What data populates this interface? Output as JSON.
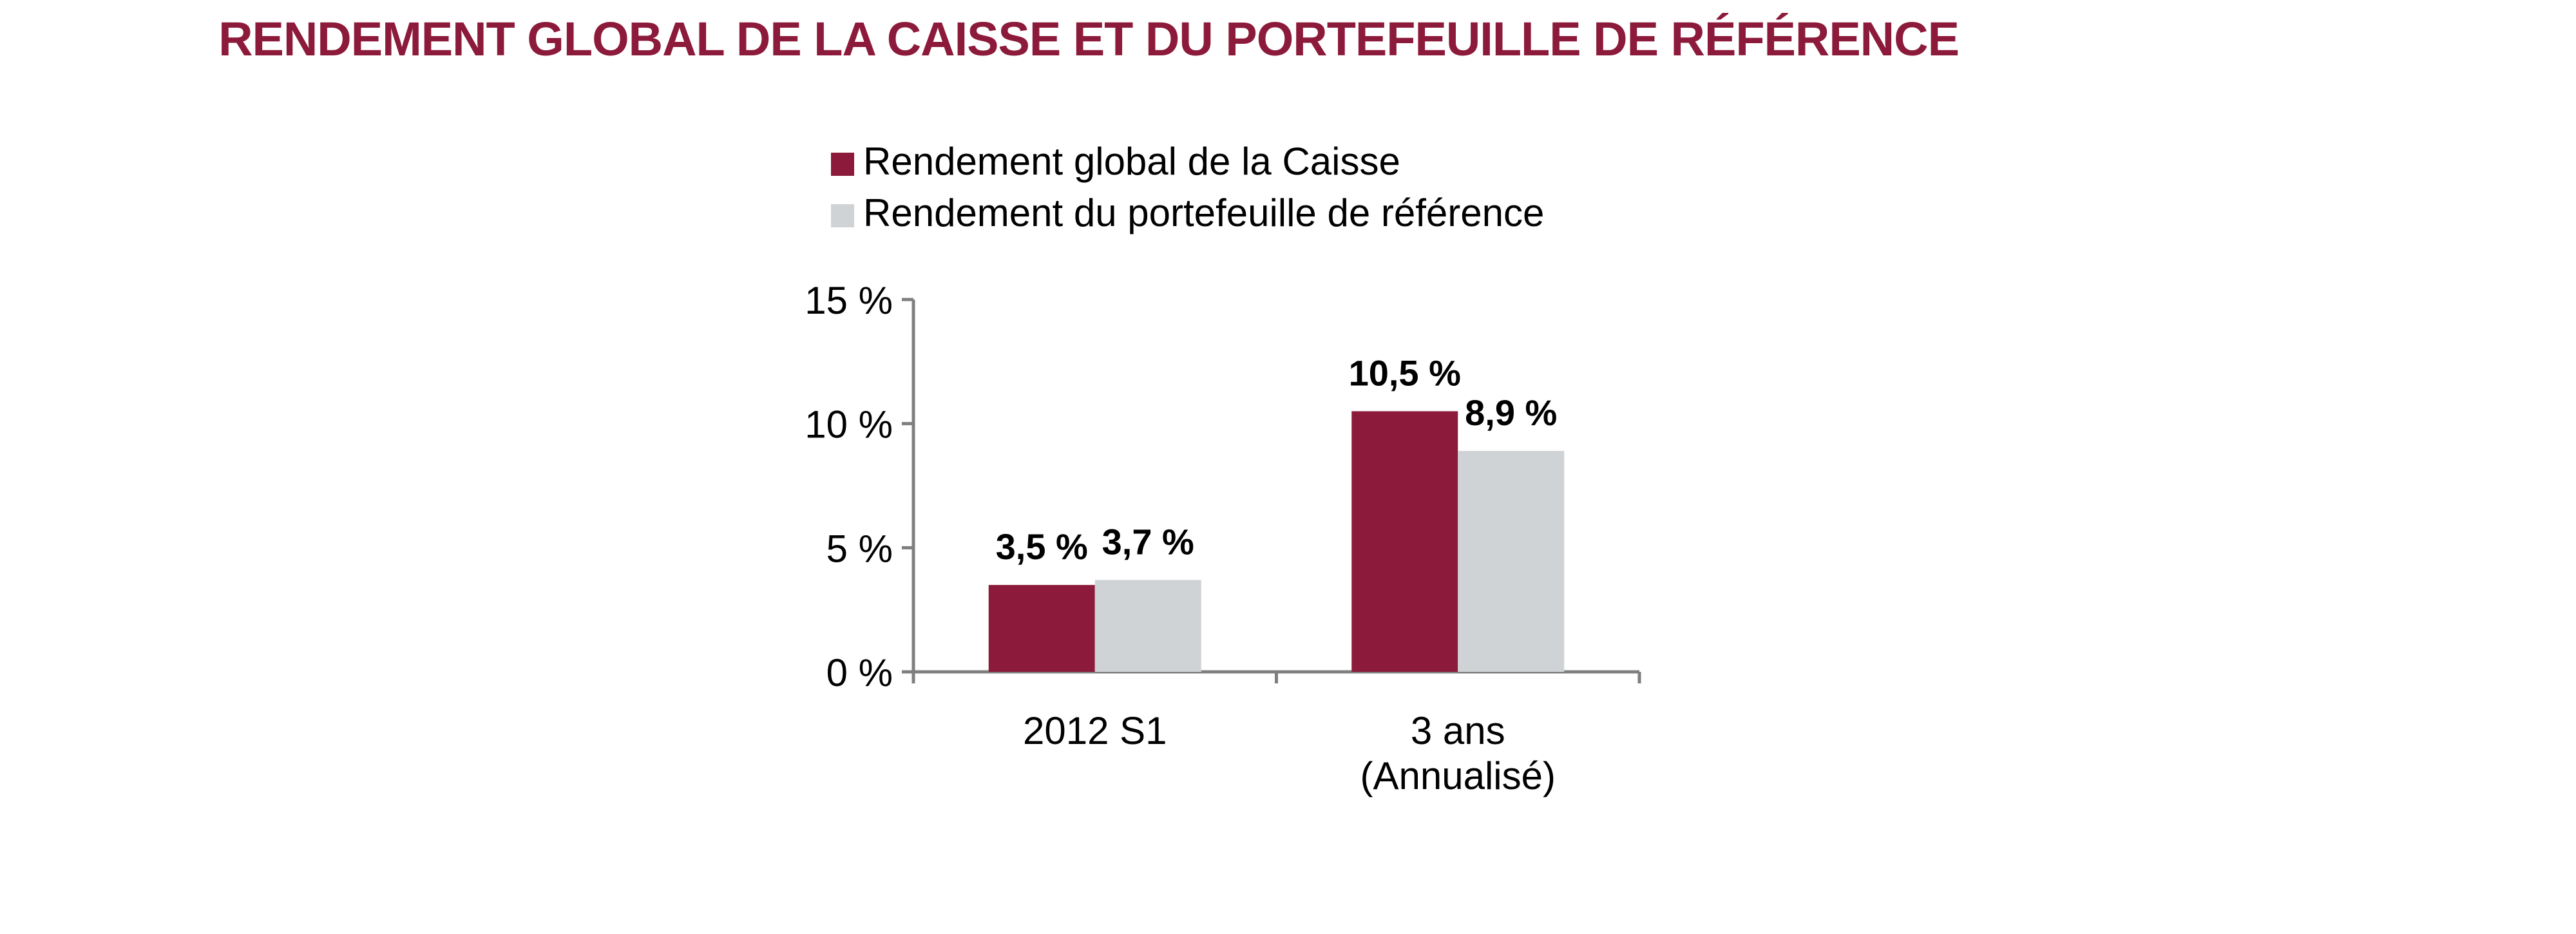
{
  "chart_data": {
    "type": "bar",
    "title": "RENDEMENT GLOBAL DE LA CAISSE ET DU PORTEFEUILLE DE RÉFÉRENCE",
    "categories": [
      [
        "2012 S1"
      ],
      [
        "3 ans",
        "(Annualisé)"
      ]
    ],
    "series": [
      {
        "name": "Rendement global de la Caisse",
        "color": "#8c1a3a",
        "values": [
          3.5,
          10.5
        ],
        "labels": [
          "3,5 %",
          "10,5 %"
        ]
      },
      {
        "name": "Rendement du portefeuille de référence",
        "color": "#d0d3d6",
        "values": [
          3.7,
          8.9
        ],
        "labels": [
          "3,7 %",
          "8,9 %"
        ]
      }
    ],
    "ylim": [
      0,
      15
    ],
    "yticks": [
      0,
      5,
      10,
      15
    ],
    "ytick_labels": [
      "0 %",
      "5 %",
      "10 %",
      "15 %"
    ],
    "legend_position": "top",
    "grid": false,
    "axis_color": "#7f7f7f"
  }
}
